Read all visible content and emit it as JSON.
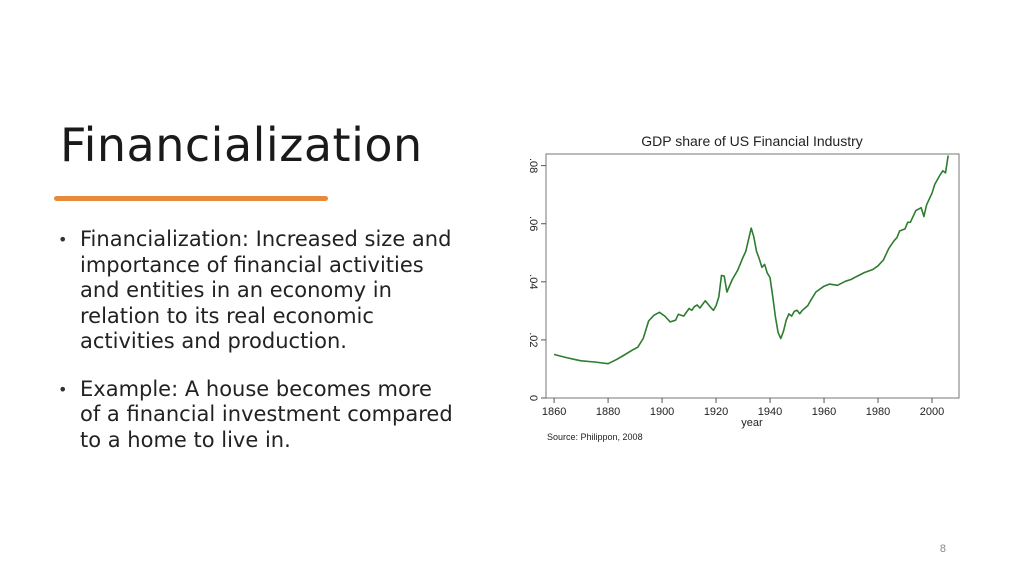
{
  "slide": {
    "title": "Financialization",
    "bullets": [
      "Financialization: Increased size and importance of financial activities and entities in an economy in relation to its real economic activities and production.",
      "Example: A house becomes more of a financial investment compared to a home to live in."
    ],
    "page_number": "8",
    "accent_color": "#e88a3c"
  },
  "chart_data": {
    "type": "line",
    "title": "GDP share of US Financial Industry",
    "xlabel": "year",
    "ylabel": "",
    "source": "Source: Philippon, 2008",
    "xlim": [
      1857,
      2010
    ],
    "ylim": [
      0,
      0.084
    ],
    "x_ticks": [
      1860,
      1880,
      1900,
      1920,
      1940,
      1960,
      1980,
      2000
    ],
    "x_tick_labels": [
      "1860",
      "1880",
      "1900",
      "1920",
      "1940",
      "1960",
      "1980",
      "2000"
    ],
    "y_ticks": [
      0,
      0.02,
      0.04,
      0.06,
      0.08
    ],
    "y_tick_labels": [
      "0",
      ".02",
      ".04",
      ".06",
      ".08"
    ],
    "grid": false,
    "series": [
      {
        "color": "#2e7d2e",
        "x": [
          1860,
          1862,
          1865,
          1868,
          1870,
          1875,
          1880,
          1883,
          1886,
          1889,
          1891,
          1893,
          1895,
          1897,
          1899,
          1901,
          1902,
          1903,
          1905,
          1906,
          1908,
          1910,
          1911,
          1912,
          1913,
          1914,
          1916,
          1918,
          1919,
          1920,
          1921,
          1922,
          1923,
          1924,
          1926,
          1928,
          1930,
          1931,
          1932,
          1933,
          1934,
          1935,
          1936,
          1937,
          1938,
          1939,
          1940,
          1941,
          1942,
          1943,
          1944,
          1945,
          1946,
          1947,
          1948,
          1949,
          1950,
          1951,
          1952,
          1954,
          1955,
          1957,
          1960,
          1962,
          1965,
          1968,
          1970,
          1972,
          1975,
          1978,
          1980,
          1982,
          1984,
          1986,
          1987,
          1988,
          1990,
          1991,
          1992,
          1994,
          1996,
          1997,
          1998,
          2000,
          2001,
          2002,
          2003,
          2004,
          2005,
          2006
        ],
        "values": [
          0.015,
          0.0145,
          0.0138,
          0.0132,
          0.0128,
          0.0124,
          0.0118,
          0.0132,
          0.0148,
          0.0165,
          0.0175,
          0.0205,
          0.0265,
          0.0285,
          0.0295,
          0.0282,
          0.0272,
          0.0262,
          0.0268,
          0.0288,
          0.0282,
          0.0308,
          0.0302,
          0.0315,
          0.032,
          0.031,
          0.0335,
          0.0312,
          0.0302,
          0.0318,
          0.0348,
          0.0422,
          0.042,
          0.0365,
          0.0408,
          0.044,
          0.0485,
          0.0505,
          0.0545,
          0.0585,
          0.0555,
          0.0505,
          0.048,
          0.045,
          0.046,
          0.043,
          0.0415,
          0.035,
          0.028,
          0.0225,
          0.0205,
          0.023,
          0.0268,
          0.029,
          0.0282,
          0.0298,
          0.0302,
          0.029,
          0.0302,
          0.0318,
          0.0335,
          0.0365,
          0.0385,
          0.0392,
          0.0388,
          0.0402,
          0.0408,
          0.0418,
          0.0432,
          0.0442,
          0.0455,
          0.0475,
          0.0515,
          0.0542,
          0.0552,
          0.0575,
          0.0582,
          0.0605,
          0.0605,
          0.0645,
          0.0655,
          0.0625,
          0.0665,
          0.0705,
          0.0735,
          0.0752,
          0.0768,
          0.0782,
          0.0775,
          0.0835
        ]
      }
    ]
  }
}
